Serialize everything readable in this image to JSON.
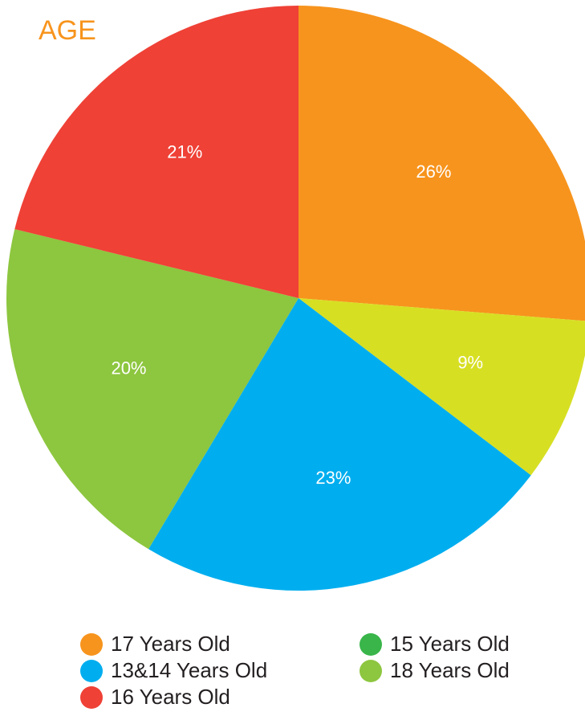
{
  "chart_data": {
    "type": "pie",
    "title": "AGE",
    "categories": [
      "17 Years Old",
      "15 Years Old",
      "13&14 Years Old",
      "18 Years Old",
      "16 Years Old"
    ],
    "values": [
      26,
      9,
      23,
      20,
      21
    ],
    "value_labels": [
      "26%",
      "9%",
      "23%",
      "20%",
      "21%"
    ],
    "colors": [
      "#f7941d",
      "#d7df23",
      "#00aeef",
      "#8dc63f",
      "#ef4136"
    ],
    "legend_colors": [
      "#f7941d",
      "#39b54a",
      "#00aeef",
      "#8dc63f",
      "#ef4136"
    ],
    "legend": "bottom"
  }
}
